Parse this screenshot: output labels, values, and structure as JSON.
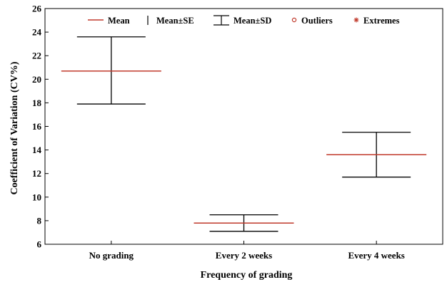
{
  "chart_data": {
    "type": "box",
    "title": "",
    "xlabel": "Frequency of grading",
    "ylabel": "Coefficient of Variation (CV%)",
    "ylim": [
      6,
      26
    ],
    "yticks": [
      6,
      8,
      10,
      12,
      14,
      16,
      18,
      20,
      22,
      24,
      26
    ],
    "categories": [
      "No grading",
      "Every 2 weeks",
      "Every 4 weeks"
    ],
    "series": [
      {
        "name": "Mean",
        "values": [
          20.7,
          7.8,
          13.6
        ]
      },
      {
        "name": "Mean±SD lower",
        "values": [
          17.9,
          7.1,
          11.7
        ]
      },
      {
        "name": "Mean±SD upper",
        "values": [
          23.6,
          8.5,
          15.5
        ]
      }
    ],
    "legend": {
      "placement": "top",
      "items": [
        {
          "label": "Mean",
          "symbol": "line"
        },
        {
          "label": "Mean±SE",
          "symbol": "bar"
        },
        {
          "label": "Mean±SD",
          "symbol": "whisker"
        },
        {
          "label": "Outliers",
          "symbol": "circle"
        },
        {
          "label": "Extremes",
          "symbol": "star"
        }
      ]
    },
    "colors": {
      "mean": "#c0392b",
      "whisker": "#000000",
      "outlier": "#c0392b"
    },
    "grid": false
  }
}
